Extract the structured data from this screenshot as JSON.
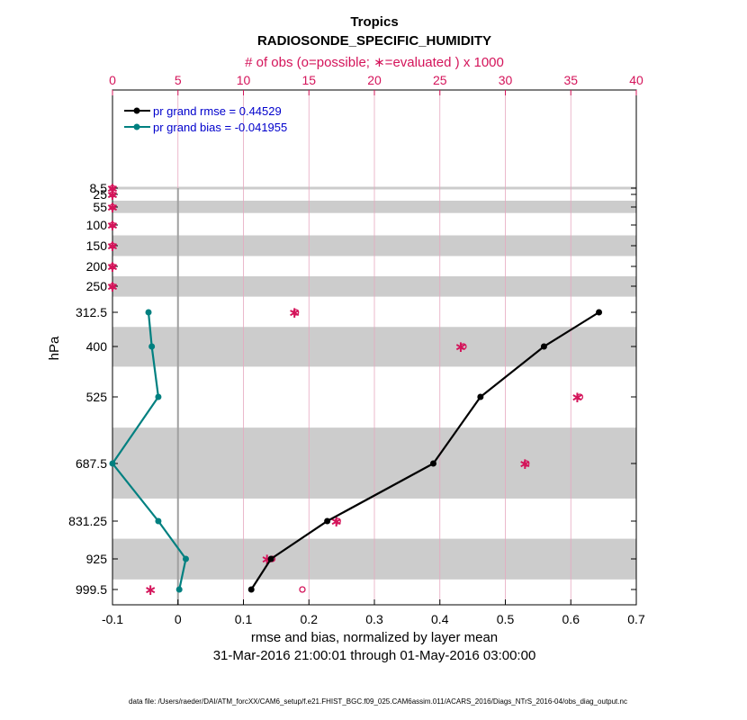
{
  "figure": {
    "title": "Tropics",
    "subtitle": "RADIOSONDE_SPECIFIC_HUMIDITY",
    "date_range": "31-Mar-2016 21:00:01 through 01-May-2016 03:00:00",
    "footer": "data file: /Users/raeder/DAI/ATM_forcXX/CAM6_setup/f.e21.FHIST_BGC.f09_025.CAM6assim.011/ACARS_2016/Diags_NTrS_2016-04/obs_diag_output.nc"
  },
  "colors": {
    "rmse": "#000000",
    "bias": "#008080",
    "obs": "#d4145a",
    "band": "#cccccc",
    "zero_line": "#a0a0a0",
    "legend_text": "#0000cc"
  },
  "chart_data": {
    "type": "line",
    "title": "Tropics",
    "subtitle": "RADIOSONDE_SPECIFIC_HUMIDITY",
    "xlabel": "rmse and bias, normalized by layer mean",
    "ylabel": "hPa",
    "xlim": [
      -0.1,
      0.7
    ],
    "x_ticks": [
      -0.1,
      0,
      0.1,
      0.2,
      0.3,
      0.4,
      0.5,
      0.6,
      0.7
    ],
    "x_tick_labels": [
      "-0.1",
      "0",
      "0.1",
      "0.2",
      "0.3",
      "0.4",
      "0.5",
      "0.6",
      "0.7"
    ],
    "top_axis": {
      "label": "# of obs (o=possible; ∗=evaluated ) x 1000",
      "lim": [
        0,
        40
      ],
      "ticks": [
        0,
        5,
        10,
        15,
        20,
        25,
        30,
        35,
        40
      ],
      "tick_labels": [
        "0",
        "5",
        "10",
        "15",
        "20",
        "25",
        "30",
        "35",
        "40"
      ]
    },
    "levels": [
      8.5,
      25,
      55,
      100,
      150,
      200,
      250,
      312.5,
      400,
      525,
      687.5,
      831.25,
      925,
      999.5
    ],
    "level_labels": [
      "8.5",
      "25",
      "55",
      "100",
      "150",
      "200",
      "250",
      "312.5",
      "400",
      "525",
      "687.5",
      "831.25",
      "925",
      "999.5"
    ],
    "shaded_bands": [
      [
        5,
        12
      ],
      [
        40,
        70
      ],
      [
        125,
        175
      ],
      [
        225,
        275
      ],
      [
        350,
        450
      ],
      [
        600,
        775
      ],
      [
        875,
        975
      ]
    ],
    "series": [
      {
        "name": "pr grand rmse = 0.44529",
        "levels": [
          312.5,
          400,
          525,
          687.5,
          831.25,
          925,
          999.5
        ],
        "values": [
          0.643,
          0.559,
          0.462,
          0.39,
          0.228,
          0.142,
          0.112
        ]
      },
      {
        "name": "pr grand bias = -0.041955",
        "levels": [
          312.5,
          400,
          525,
          687.5,
          831.25,
          925,
          999.5
        ],
        "values": [
          -0.045,
          -0.04,
          -0.03,
          -0.1,
          -0.03,
          0.012,
          0.002
        ]
      }
    ],
    "obs_counts": {
      "levels": [
        8.5,
        25,
        55,
        100,
        150,
        200,
        250,
        312.5,
        400,
        525,
        687.5,
        831.25,
        925,
        999.5
      ],
      "possible": [
        0,
        0,
        0,
        0,
        0,
        0,
        0,
        14,
        26.8,
        35.7,
        31.6,
        17.2,
        12.2,
        14.5
      ],
      "evaluated": [
        0,
        0,
        0,
        0,
        0,
        0,
        0,
        13.9,
        26.6,
        35.5,
        31.5,
        17.1,
        11.8,
        2.9
      ]
    }
  }
}
